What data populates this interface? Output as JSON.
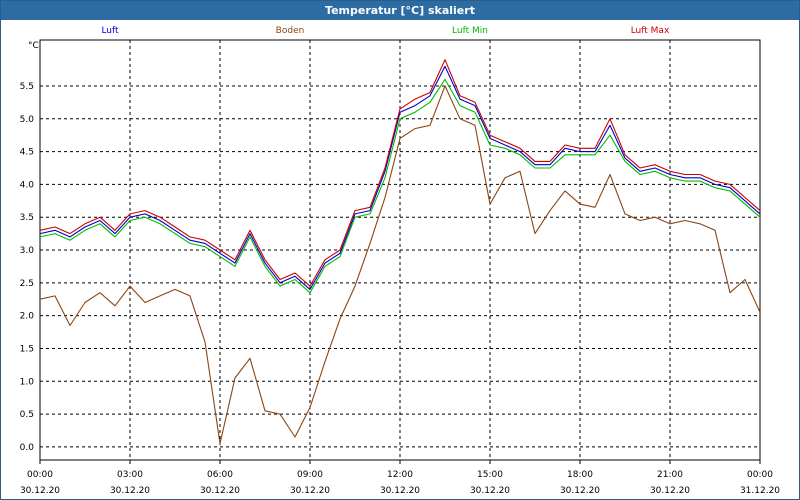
{
  "window": {
    "title": "Temperatur [°C] skaliert"
  },
  "chart_data": {
    "type": "line",
    "ylabel": "°C",
    "ylim": [
      -0.2,
      6.2
    ],
    "xlim": [
      0,
      24
    ],
    "grid": true,
    "legend_placement": "top",
    "yticks": [
      "0.0",
      "0.5",
      "1.0",
      "1.5",
      "2.0",
      "2.5",
      "3.0",
      "3.5",
      "4.0",
      "4.5",
      "5.0",
      "5.5"
    ],
    "xticks": [
      {
        "time": "00:00",
        "date": "30.12.20"
      },
      {
        "time": "03:00",
        "date": "30.12.20"
      },
      {
        "time": "06:00",
        "date": "30.12.20"
      },
      {
        "time": "09:00",
        "date": "30.12.20"
      },
      {
        "time": "12:00",
        "date": "30.12.20"
      },
      {
        "time": "15:00",
        "date": "30.12.20"
      },
      {
        "time": "18:00",
        "date": "30.12.20"
      },
      {
        "time": "21:00",
        "date": "30.12.20"
      },
      {
        "time": "00:00",
        "date": "31.12.20"
      }
    ],
    "x": [
      0,
      0.5,
      1,
      1.5,
      2,
      2.5,
      3,
      3.5,
      4,
      4.5,
      5,
      5.5,
      6,
      6.5,
      7,
      7.5,
      8,
      8.5,
      9,
      9.5,
      10,
      10.5,
      11,
      11.5,
      12,
      12.5,
      13,
      13.5,
      14,
      14.5,
      15,
      15.5,
      16,
      16.5,
      17,
      17.5,
      18,
      18.5,
      19,
      19.5,
      20,
      20.5,
      21,
      21.5,
      22,
      22.5,
      23,
      23.5,
      24
    ],
    "series": [
      {
        "name": "Luft",
        "color": "#0000cc",
        "values": [
          3.25,
          3.3,
          3.2,
          3.35,
          3.45,
          3.25,
          3.5,
          3.55,
          3.45,
          3.3,
          3.15,
          3.1,
          2.95,
          2.8,
          3.25,
          2.8,
          2.5,
          2.6,
          2.4,
          2.8,
          2.95,
          3.55,
          3.6,
          4.2,
          5.1,
          5.2,
          5.35,
          5.8,
          5.3,
          5.2,
          4.7,
          4.6,
          4.5,
          4.3,
          4.3,
          4.55,
          4.5,
          4.5,
          4.9,
          4.4,
          4.2,
          4.25,
          4.15,
          4.1,
          4.1,
          4.0,
          3.95,
          3.75,
          3.55
        ]
      },
      {
        "name": "Boden",
        "color": "#8b4513",
        "values": [
          2.25,
          2.3,
          1.85,
          2.2,
          2.35,
          2.15,
          2.45,
          2.2,
          2.3,
          2.4,
          2.3,
          1.6,
          0.05,
          1.05,
          1.35,
          0.55,
          0.5,
          0.15,
          0.6,
          1.3,
          1.95,
          2.45,
          3.1,
          3.8,
          4.7,
          4.85,
          4.9,
          5.5,
          5.0,
          4.9,
          3.7,
          4.1,
          4.2,
          3.25,
          3.6,
          3.9,
          3.7,
          3.65,
          4.15,
          3.55,
          3.45,
          3.5,
          3.4,
          3.45,
          3.4,
          3.3,
          2.35,
          2.55,
          2.05
        ]
      },
      {
        "name": "Luft Min",
        "color": "#00bb00",
        "values": [
          3.2,
          3.25,
          3.15,
          3.3,
          3.4,
          3.2,
          3.45,
          3.5,
          3.4,
          3.25,
          3.1,
          3.05,
          2.9,
          2.75,
          3.2,
          2.75,
          2.45,
          2.55,
          2.35,
          2.75,
          2.9,
          3.5,
          3.55,
          4.1,
          5.0,
          5.1,
          5.25,
          5.6,
          5.2,
          5.1,
          4.6,
          4.55,
          4.45,
          4.25,
          4.25,
          4.45,
          4.45,
          4.45,
          4.75,
          4.35,
          4.15,
          4.2,
          4.1,
          4.05,
          4.05,
          3.95,
          3.9,
          3.7,
          3.5
        ]
      },
      {
        "name": "Luft Max",
        "color": "#cc0000",
        "values": [
          3.3,
          3.35,
          3.25,
          3.4,
          3.5,
          3.3,
          3.55,
          3.6,
          3.5,
          3.35,
          3.2,
          3.15,
          3.0,
          2.85,
          3.3,
          2.85,
          2.55,
          2.65,
          2.45,
          2.85,
          3.0,
          3.6,
          3.65,
          4.25,
          5.15,
          5.3,
          5.4,
          5.9,
          5.35,
          5.25,
          4.75,
          4.65,
          4.55,
          4.35,
          4.35,
          4.6,
          4.55,
          4.55,
          5.0,
          4.45,
          4.25,
          4.3,
          4.2,
          4.15,
          4.15,
          4.05,
          4.0,
          3.8,
          3.6
        ]
      }
    ]
  }
}
